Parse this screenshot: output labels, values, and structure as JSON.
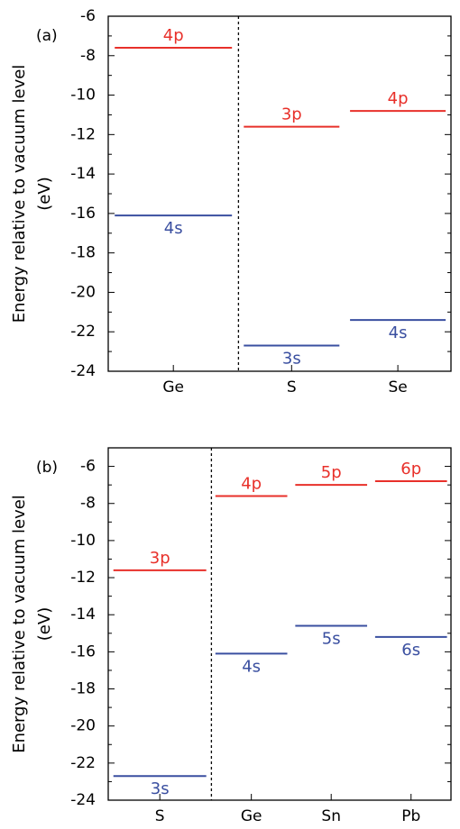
{
  "chart_data": [
    {
      "type": "level",
      "panel_label": "(a)",
      "ylabel": [
        "Energy relative to vacuum level",
        "(eV)"
      ],
      "categories": [
        "Ge",
        "S",
        "Se"
      ],
      "separator_after": 0,
      "series": [
        {
          "color": "#e8302a",
          "values": [
            -7.6,
            -11.6,
            -10.8
          ],
          "value_labels": [
            "4p",
            "3p",
            "4p"
          ],
          "label_side": "above"
        },
        {
          "color": "#3a4fa0",
          "values": [
            -16.1,
            -22.7,
            -21.4
          ],
          "value_labels": [
            "4s",
            "3s",
            "4s"
          ],
          "label_side": "below"
        }
      ],
      "ylim": [
        -24,
        -6
      ],
      "yticks": [
        -24,
        -22,
        -20,
        -18,
        -16,
        -14,
        -12,
        -10,
        -8,
        -6
      ]
    },
    {
      "type": "level",
      "panel_label": "(b)",
      "ylabel": [
        "Energy relative to vacuum level",
        "(eV)"
      ],
      "categories": [
        "S",
        "Ge",
        "Sn",
        "Pb"
      ],
      "separator_after": 0,
      "series": [
        {
          "color": "#e8302a",
          "values": [
            -11.6,
            -7.6,
            -7.0,
            -6.8
          ],
          "value_labels": [
            "3p",
            "4p",
            "5p",
            "6p"
          ],
          "label_side": "above"
        },
        {
          "color": "#3a4fa0",
          "values": [
            -22.7,
            -16.1,
            -14.6,
            -15.2
          ],
          "value_labels": [
            "3s",
            "4s",
            "5s",
            "6s"
          ],
          "label_side": "below"
        }
      ],
      "ylim": [
        -24,
        -5
      ],
      "yticks": [
        -24,
        -22,
        -20,
        -18,
        -16,
        -14,
        -12,
        -10,
        -8,
        -6
      ]
    }
  ]
}
